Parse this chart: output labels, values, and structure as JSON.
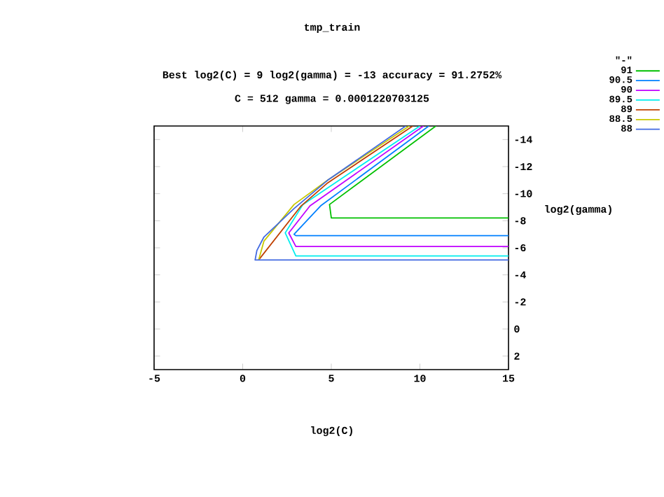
{
  "chart_data": {
    "type": "line",
    "title": "tmp_train",
    "subtitle": "Best log2(C) = 9  log2(gamma) = -13  accuracy = 91.2752%",
    "annotations": [
      "C = 512  gamma = 0.0001220703125"
    ],
    "xlabel": "log2(C)",
    "ylabel": "log2(gamma)",
    "legend_title": "\"-\"",
    "xlim": [
      -5,
      15
    ],
    "ylim": [
      3,
      -15
    ],
    "xticks": [
      -5,
      0,
      5,
      10,
      15
    ],
    "yticks": [
      -14,
      -12,
      -10,
      -8,
      -6,
      -4,
      -2,
      0,
      2
    ],
    "legend": "top right",
    "marker": "none",
    "line_style": "solid",
    "series": [
      {
        "name": "91",
        "color": "#00c000",
        "x": [
          10.9,
          4.9,
          5.0,
          15
        ],
        "values": [
          -15,
          -9.2,
          -8.2,
          -8.2
        ]
      },
      {
        "name": "90.5",
        "color": "#0080ff",
        "x": [
          10.5,
          4.4,
          2.9,
          3.0,
          15
        ],
        "values": [
          -15,
          -9.1,
          -7.0,
          -6.9,
          -6.9
        ]
      },
      {
        "name": "90",
        "color": "#c000ff",
        "x": [
          10.2,
          3.8,
          2.6,
          3.0,
          15
        ],
        "values": [
          -15,
          -9.1,
          -7.1,
          -6.1,
          -6.1
        ]
      },
      {
        "name": "89.5",
        "color": "#00eeee",
        "x": [
          10.0,
          3.4,
          2.4,
          3.0,
          15
        ],
        "values": [
          -15,
          -9.2,
          -7.1,
          -5.4,
          -5.4
        ]
      },
      {
        "name": "89",
        "color": "#c04000",
        "x": [
          9.6,
          4.8,
          3.3,
          0.9
        ],
        "values": [
          -15,
          -10.8,
          -9.1,
          -5.1
        ]
      },
      {
        "name": "88.5",
        "color": "#c8c800",
        "x": [
          9.4,
          4.8,
          2.9,
          1.2,
          0.9
        ],
        "values": [
          -15,
          -11.0,
          -9.2,
          -6.5,
          -5.1
        ]
      },
      {
        "name": "88",
        "color": "#4169e1",
        "x": [
          9.2,
          4.8,
          2.9,
          1.2,
          0.8,
          0.7,
          15
        ],
        "values": [
          -15,
          -11.0,
          -8.9,
          -6.8,
          -5.8,
          -5.1,
          -5.1
        ]
      }
    ]
  }
}
